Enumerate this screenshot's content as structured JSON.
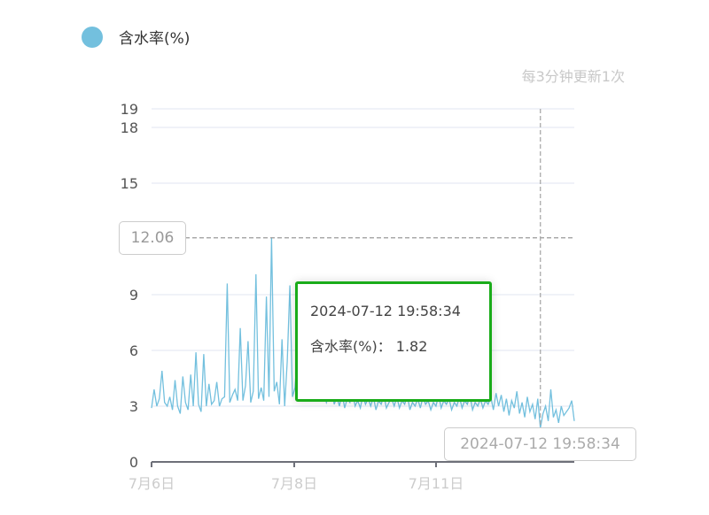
{
  "legend": {
    "label": "含水率(%)",
    "color": "#73c0de"
  },
  "note": "每3分钟更新1次",
  "tooltip": {
    "time": "2024-07-12 19:58:34",
    "series": "含水率(%)",
    "value": "1.82",
    "row": "含水率(%)：  1.82"
  },
  "axis_pointer": {
    "y_label": "12.06",
    "x_label": "2024-07-12 19:58:34"
  },
  "chart_data": {
    "type": "line",
    "series": [
      {
        "name": "含水率(%)",
        "color": "#73c0de",
        "values": [
          2.9,
          3.9,
          3.0,
          3.4,
          4.9,
          3.2,
          3.0,
          3.5,
          2.8,
          4.4,
          3.0,
          2.6,
          4.6,
          3.2,
          2.8,
          4.7,
          3.0,
          5.9,
          3.1,
          2.7,
          5.8,
          3.0,
          4.2,
          3.1,
          3.3,
          4.3,
          3.0,
          3.4,
          3.5,
          9.6,
          3.2,
          3.6,
          3.9,
          3.3,
          7.2,
          3.3,
          4.1,
          6.5,
          3.2,
          3.8,
          10.1,
          3.4,
          4.0,
          3.3,
          8.9,
          3.5,
          12.06,
          3.8,
          4.3,
          3.1,
          6.6,
          3.0,
          5.4,
          9.5,
          3.5,
          4.0,
          6.1,
          4.4,
          4.4,
          3.6,
          4.8,
          3.9,
          4.2,
          3.5,
          4.0,
          3.3,
          3.8,
          3.2,
          3.6,
          4.1,
          3.1,
          3.5,
          3.0,
          3.7,
          2.9,
          3.4,
          3.2,
          3.8,
          3.0,
          3.3,
          2.9,
          3.6,
          3.1,
          3.4,
          3.0,
          3.5,
          2.8,
          3.3,
          3.1,
          3.6,
          2.9,
          3.2,
          3.4,
          3.0,
          3.5,
          2.9,
          3.3,
          3.1,
          3.6,
          2.8,
          3.2,
          3.0,
          3.4,
          2.9,
          3.5,
          3.1,
          3.3,
          2.8,
          3.2,
          3.0,
          3.6,
          2.9,
          3.3,
          3.1,
          3.4,
          2.8,
          3.2,
          3.0,
          3.5,
          2.9,
          3.3,
          3.1,
          3.6,
          2.8,
          3.2,
          3.0,
          3.4,
          2.9,
          3.3,
          3.1,
          3.5,
          2.8,
          3.7,
          3.0,
          3.6,
          2.7,
          3.4,
          2.5,
          3.3,
          2.9,
          3.8,
          2.6,
          3.2,
          2.4,
          3.5,
          2.7,
          3.1,
          2.3,
          3.4,
          1.82,
          2.6,
          3.0,
          2.2,
          3.9,
          2.4,
          2.8,
          2.1,
          3.0,
          2.5,
          2.7,
          2.9,
          3.3,
          2.2
        ]
      }
    ],
    "x_ticks": [
      "7月6日",
      "7月8日",
      "7月11日"
    ],
    "y_ticks": [
      "0",
      "3",
      "6",
      "9",
      "15",
      "18",
      "19"
    ],
    "ylim": [
      0,
      19
    ],
    "grid": true,
    "legend_position": "top-left"
  }
}
